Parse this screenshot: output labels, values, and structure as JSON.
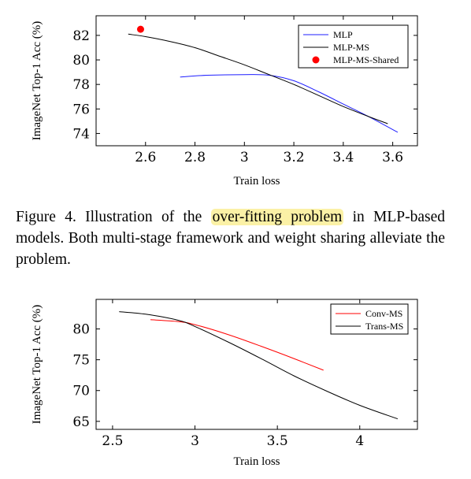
{
  "caption": {
    "prefix": "Figure 4.  Illustration of the ",
    "highlight": "over-fitting problem",
    "suffix": " in MLP-based models. Both multi-stage framework and weight sharing alleviate the problem.",
    "highlight_color": "#fbf1a6"
  },
  "chart_data": [
    {
      "type": "line",
      "xlabel": "Train loss",
      "ylabel": "ImageNet Top-1 Acc (%)",
      "xlim": [
        2.4,
        3.7
      ],
      "ylim": [
        73,
        83.6
      ],
      "xticks": [
        2.6,
        2.8,
        3,
        3.2,
        3.4,
        3.6
      ],
      "xtick_labels": [
        "2.6",
        "2.8",
        "3",
        "3.2",
        "3.4",
        "3.6"
      ],
      "yticks": [
        74,
        76,
        78,
        80,
        82
      ],
      "ytick_labels": [
        "74",
        "76",
        "78",
        "80",
        "82"
      ],
      "grid": false,
      "legend_position": "top-right",
      "series": [
        {
          "name": "MLP",
          "kind": "line",
          "color": "#1f1fff",
          "x": [
            2.74,
            2.85,
            3.0,
            3.1,
            3.2,
            3.3,
            3.4,
            3.5,
            3.62
          ],
          "y": [
            78.6,
            78.75,
            78.8,
            78.75,
            78.3,
            77.4,
            76.4,
            75.4,
            74.1
          ]
        },
        {
          "name": "MLP-MS",
          "kind": "line",
          "color": "#000000",
          "x": [
            2.53,
            2.6,
            2.7,
            2.8,
            2.9,
            3.0,
            3.1,
            3.2,
            3.3,
            3.4,
            3.5,
            3.58
          ],
          "y": [
            82.1,
            81.9,
            81.5,
            81.0,
            80.3,
            79.6,
            78.8,
            78.0,
            77.1,
            76.2,
            75.4,
            74.8
          ]
        },
        {
          "name": "MLP-MS-Shared",
          "kind": "marker",
          "color": "#ff0000",
          "x": [
            2.58
          ],
          "y": [
            82.5
          ]
        }
      ]
    },
    {
      "type": "line",
      "xlabel": "Train loss",
      "ylabel": "ImageNet Top-1 Acc (%)",
      "xlim": [
        2.4,
        4.35
      ],
      "ylim": [
        63.7,
        84.8
      ],
      "xticks": [
        2.5,
        3,
        3.5,
        4
      ],
      "xtick_labels": [
        "2.5",
        "3",
        "3.5",
        "4"
      ],
      "yticks": [
        65,
        70,
        75,
        80
      ],
      "ytick_labels": [
        "65",
        "70",
        "75",
        "80"
      ],
      "grid": false,
      "legend_position": "top-right",
      "series": [
        {
          "name": "Conv-MS",
          "kind": "line",
          "color": "#ff0000",
          "x": [
            2.73,
            2.9,
            3.0,
            3.2,
            3.4,
            3.6,
            3.78
          ],
          "y": [
            81.5,
            81.2,
            80.7,
            79.1,
            77.2,
            75.2,
            73.3
          ]
        },
        {
          "name": "Trans-MS",
          "kind": "line",
          "color": "#000000",
          "x": [
            2.54,
            2.7,
            2.9,
            3.0,
            3.2,
            3.4,
            3.6,
            3.8,
            4.0,
            4.23
          ],
          "y": [
            82.8,
            82.4,
            81.4,
            80.4,
            77.9,
            75.2,
            72.4,
            69.9,
            67.6,
            65.4
          ]
        }
      ]
    }
  ]
}
